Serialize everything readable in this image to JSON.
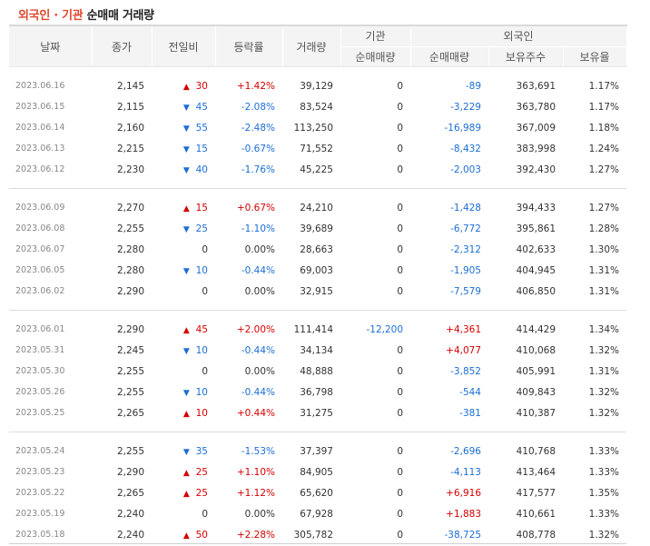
{
  "title": {
    "part1": "외국인 · 기관",
    "part2": "순매매 거래량"
  },
  "headers": {
    "date": "날짜",
    "close": "종가",
    "change": "전일비",
    "rate": "등락률",
    "volume": "거래량",
    "inst_group": "기관",
    "inst_net": "순매매량",
    "foreign_group": "외국인",
    "foreign_net": "순매매량",
    "foreign_hold": "보유주수",
    "foreign_ratio": "보유율"
  },
  "groups": [
    [
      {
        "date": "2023.06.16",
        "close": "2,145",
        "dir": "up",
        "diff": "30",
        "rate": "+1.42%",
        "volume": "39,129",
        "inst": "0",
        "foreign": "-89",
        "hold": "363,691",
        "ratio": "1.17%"
      },
      {
        "date": "2023.06.15",
        "close": "2,115",
        "dir": "down",
        "diff": "45",
        "rate": "-2.08%",
        "volume": "83,524",
        "inst": "0",
        "foreign": "-3,229",
        "hold": "363,780",
        "ratio": "1.17%"
      },
      {
        "date": "2023.06.14",
        "close": "2,160",
        "dir": "down",
        "diff": "55",
        "rate": "-2.48%",
        "volume": "113,250",
        "inst": "0",
        "foreign": "-16,989",
        "hold": "367,009",
        "ratio": "1.18%"
      },
      {
        "date": "2023.06.13",
        "close": "2,215",
        "dir": "down",
        "diff": "15",
        "rate": "-0.67%",
        "volume": "71,552",
        "inst": "0",
        "foreign": "-8,432",
        "hold": "383,998",
        "ratio": "1.24%"
      },
      {
        "date": "2023.06.12",
        "close": "2,230",
        "dir": "down",
        "diff": "40",
        "rate": "-1.76%",
        "volume": "45,225",
        "inst": "0",
        "foreign": "-2,003",
        "hold": "392,430",
        "ratio": "1.27%"
      }
    ],
    [
      {
        "date": "2023.06.09",
        "close": "2,270",
        "dir": "up",
        "diff": "15",
        "rate": "+0.67%",
        "volume": "24,210",
        "inst": "0",
        "foreign": "-1,428",
        "hold": "394,433",
        "ratio": "1.27%"
      },
      {
        "date": "2023.06.08",
        "close": "2,255",
        "dir": "down",
        "diff": "25",
        "rate": "-1.10%",
        "volume": "39,689",
        "inst": "0",
        "foreign": "-6,772",
        "hold": "395,861",
        "ratio": "1.28%"
      },
      {
        "date": "2023.06.07",
        "close": "2,280",
        "dir": "none",
        "diff": "0",
        "rate": "0.00%",
        "volume": "28,663",
        "inst": "0",
        "foreign": "-2,312",
        "hold": "402,633",
        "ratio": "1.30%"
      },
      {
        "date": "2023.06.05",
        "close": "2,280",
        "dir": "down",
        "diff": "10",
        "rate": "-0.44%",
        "volume": "69,003",
        "inst": "0",
        "foreign": "-1,905",
        "hold": "404,945",
        "ratio": "1.31%"
      },
      {
        "date": "2023.06.02",
        "close": "2,290",
        "dir": "none",
        "diff": "0",
        "rate": "0.00%",
        "volume": "32,915",
        "inst": "0",
        "foreign": "-7,579",
        "hold": "406,850",
        "ratio": "1.31%"
      }
    ],
    [
      {
        "date": "2023.06.01",
        "close": "2,290",
        "dir": "up",
        "diff": "45",
        "rate": "+2.00%",
        "volume": "111,414",
        "inst": "-12,200",
        "foreign": "+4,361",
        "hold": "414,429",
        "ratio": "1.34%"
      },
      {
        "date": "2023.05.31",
        "close": "2,245",
        "dir": "down",
        "diff": "10",
        "rate": "-0.44%",
        "volume": "34,134",
        "inst": "0",
        "foreign": "+4,077",
        "hold": "410,068",
        "ratio": "1.32%"
      },
      {
        "date": "2023.05.30",
        "close": "2,255",
        "dir": "none",
        "diff": "0",
        "rate": "0.00%",
        "volume": "48,888",
        "inst": "0",
        "foreign": "-3,852",
        "hold": "405,991",
        "ratio": "1.31%"
      },
      {
        "date": "2023.05.26",
        "close": "2,255",
        "dir": "down",
        "diff": "10",
        "rate": "-0.44%",
        "volume": "36,798",
        "inst": "0",
        "foreign": "-544",
        "hold": "409,843",
        "ratio": "1.32%"
      },
      {
        "date": "2023.05.25",
        "close": "2,265",
        "dir": "up",
        "diff": "10",
        "rate": "+0.44%",
        "volume": "31,275",
        "inst": "0",
        "foreign": "-381",
        "hold": "410,387",
        "ratio": "1.32%"
      }
    ],
    [
      {
        "date": "2023.05.24",
        "close": "2,255",
        "dir": "down",
        "diff": "35",
        "rate": "-1.53%",
        "volume": "37,397",
        "inst": "0",
        "foreign": "-2,696",
        "hold": "410,768",
        "ratio": "1.33%"
      },
      {
        "date": "2023.05.23",
        "close": "2,290",
        "dir": "up",
        "diff": "25",
        "rate": "+1.10%",
        "volume": "84,905",
        "inst": "0",
        "foreign": "-4,113",
        "hold": "413,464",
        "ratio": "1.33%"
      },
      {
        "date": "2023.05.22",
        "close": "2,265",
        "dir": "up",
        "diff": "25",
        "rate": "+1.12%",
        "volume": "65,620",
        "inst": "0",
        "foreign": "+6,916",
        "hold": "417,577",
        "ratio": "1.35%"
      },
      {
        "date": "2023.05.19",
        "close": "2,240",
        "dir": "none",
        "diff": "0",
        "rate": "0.00%",
        "volume": "67,928",
        "inst": "0",
        "foreign": "+1,883",
        "hold": "410,661",
        "ratio": "1.33%"
      },
      {
        "date": "2023.05.18",
        "close": "2,240",
        "dir": "up",
        "diff": "50",
        "rate": "+2.28%",
        "volume": "305,782",
        "inst": "0",
        "foreign": "-38,725",
        "hold": "408,778",
        "ratio": "1.32%"
      }
    ]
  ],
  "colors": {
    "up": "#d60000",
    "down": "#1c6ed6",
    "title_accent": "#e0482d"
  },
  "icons": {
    "up": "triangle-up-icon",
    "down": "triangle-down-icon"
  }
}
